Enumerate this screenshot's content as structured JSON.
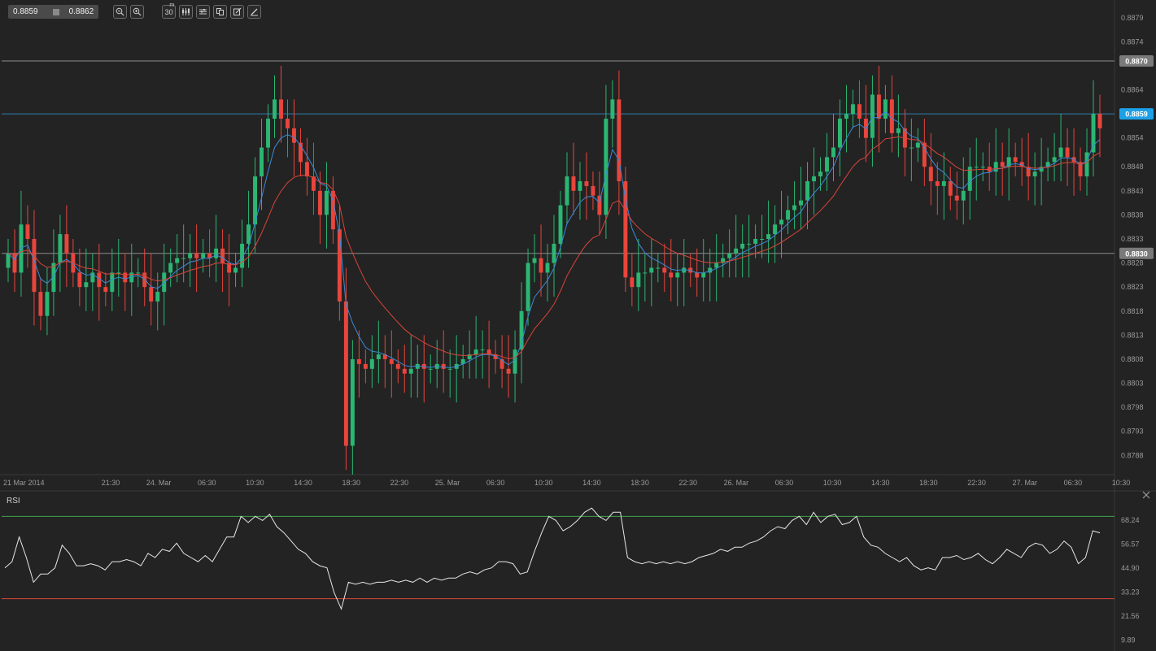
{
  "toolbar": {
    "bid": "0.8859",
    "ask": "0.8862",
    "timeframe": "30",
    "timeframe_unit": "m",
    "buttons": [
      "zoom-out-icon",
      "zoom-in-icon",
      "timeframe-button",
      "chart-type-icon",
      "indicators-icon",
      "templates-icon",
      "edit-icon",
      "draw-icon"
    ]
  },
  "colors": {
    "background": "#232323",
    "up": "#2bb673",
    "down": "#e8453c",
    "ema_fast": "#3a8ad8",
    "ema_slow": "#d8453a",
    "rsi_line": "#e6e6e6",
    "rsi_upper": "#3fa34d",
    "rsi_lower": "#d8453a",
    "current_price": "#1ea0e6"
  },
  "chart_data": [
    {
      "type": "candlestick",
      "symbol_interval": "30m",
      "ylim": [
        0.8784,
        0.8882
      ],
      "y_ticks": [
        "0.8879",
        "0.8874",
        "0.8864",
        "0.8854",
        "0.8848",
        "0.8843",
        "0.8838",
        "0.8833",
        "0.8828",
        "0.8823",
        "0.8818",
        "0.8813",
        "0.8808",
        "0.8803",
        "0.8798",
        "0.8793",
        "0.8788"
      ],
      "x_ticks": [
        "21 Mar 2014",
        "21:30",
        "24. Mar",
        "06:30",
        "10:30",
        "14:30",
        "18:30",
        "22:30",
        "25. Mar",
        "06:30",
        "10:30",
        "14:30",
        "18:30",
        "22:30",
        "26. Mar",
        "06:30",
        "10:30",
        "14:30",
        "18:30",
        "22:30",
        "27. Mar",
        "06:30",
        "10:30"
      ],
      "horizontal_lines": [
        {
          "value": 0.887,
          "label": "0.8870",
          "kind": "level"
        },
        {
          "value": 0.8859,
          "label": "0.8859",
          "kind": "current"
        },
        {
          "value": 0.883,
          "label": "0.8830",
          "kind": "level"
        }
      ],
      "close_path": [
        0.883,
        0.8826,
        0.8836,
        0.8833,
        0.8822,
        0.8817,
        0.8822,
        0.8828,
        0.8834,
        0.883,
        0.8826,
        0.8823,
        0.8824,
        0.8826,
        0.8823,
        0.8822,
        0.8826,
        0.8826,
        0.8824,
        0.8826,
        0.8826,
        0.8823,
        0.882,
        0.8822,
        0.8826,
        0.8828,
        0.8829,
        0.8829,
        0.883,
        0.8829,
        0.883,
        0.8829,
        0.8831,
        0.8828,
        0.8826,
        0.8827,
        0.8832,
        0.8836,
        0.8846,
        0.8852,
        0.8858,
        0.8862,
        0.8858,
        0.8856,
        0.8853,
        0.8849,
        0.8846,
        0.8843,
        0.8838,
        0.8843,
        0.8835,
        0.882,
        0.879,
        0.8808,
        0.8807,
        0.8806,
        0.8808,
        0.8809,
        0.8808,
        0.8807,
        0.8806,
        0.8805,
        0.8806,
        0.8807,
        0.8806,
        0.8806,
        0.8807,
        0.8806,
        0.8806,
        0.8807,
        0.8808,
        0.8809,
        0.881,
        0.881,
        0.8809,
        0.8808,
        0.8806,
        0.8805,
        0.881,
        0.8818,
        0.8828,
        0.8829,
        0.8826,
        0.8828,
        0.8832,
        0.884,
        0.8846,
        0.8843,
        0.8845,
        0.8844,
        0.8842,
        0.8838,
        0.8858,
        0.8862,
        0.8845,
        0.8825,
        0.8823,
        0.8826,
        0.8826,
        0.8827,
        0.8827,
        0.8826,
        0.8825,
        0.8826,
        0.8827,
        0.8826,
        0.8825,
        0.8826,
        0.8827,
        0.8828,
        0.8829,
        0.883,
        0.8831,
        0.8832,
        0.8832,
        0.8833,
        0.8833,
        0.8834,
        0.8836,
        0.8837,
        0.8839,
        0.884,
        0.8841,
        0.8845,
        0.8846,
        0.8847,
        0.885,
        0.8852,
        0.8858,
        0.8859,
        0.8861,
        0.8858,
        0.8854,
        0.8863,
        0.8858,
        0.8862,
        0.8855,
        0.8856,
        0.8852,
        0.8852,
        0.8853,
        0.8848,
        0.8845,
        0.8844,
        0.8845,
        0.8842,
        0.8841,
        0.8843,
        0.8848,
        0.8848,
        0.8848,
        0.8847,
        0.8849,
        0.8848,
        0.885,
        0.8849,
        0.8848,
        0.8846,
        0.8847,
        0.8848,
        0.8849,
        0.885,
        0.8852,
        0.885,
        0.8849,
        0.8846,
        0.8851,
        0.8859,
        0.8856
      ],
      "rsi": {
        "title": "RSI",
        "ylim": [
          5,
          80
        ],
        "y_ticks": [
          "68.24",
          "56.57",
          "44.90",
          "33.23",
          "21.56",
          "9.89"
        ],
        "upper": 70,
        "lower": 30,
        "values": [
          45,
          48,
          60,
          50,
          38,
          42,
          42,
          45,
          56,
          52,
          46,
          46,
          47,
          46,
          44,
          48,
          48,
          49,
          48,
          46,
          52,
          50,
          54,
          53,
          57,
          52,
          50,
          48,
          51,
          48,
          54,
          60,
          60,
          70,
          67,
          70,
          68,
          71,
          65,
          62,
          58,
          54,
          52,
          48,
          46,
          45,
          33,
          25,
          38,
          37,
          38,
          37,
          38,
          38,
          39,
          38,
          39,
          38,
          40,
          38,
          40,
          39,
          40,
          40,
          42,
          43,
          42,
          44,
          45,
          48,
          48,
          47,
          42,
          43,
          53,
          62,
          70,
          68,
          63,
          65,
          68,
          72,
          74,
          70,
          68,
          72,
          72,
          50,
          48,
          47,
          48,
          47,
          48,
          47,
          48,
          47,
          48,
          50,
          51,
          52,
          54,
          53,
          55,
          55,
          57,
          58,
          60,
          63,
          65,
          64,
          68,
          70,
          66,
          72,
          67,
          70,
          71,
          66,
          67,
          70,
          60,
          56,
          55,
          52,
          50,
          48,
          50,
          46,
          44,
          45,
          44,
          50,
          50,
          51,
          49,
          50,
          52,
          49,
          47,
          50,
          54,
          52,
          50,
          55,
          57,
          56,
          52,
          54,
          58,
          55,
          47,
          50,
          63,
          62
        ]
      }
    }
  ]
}
